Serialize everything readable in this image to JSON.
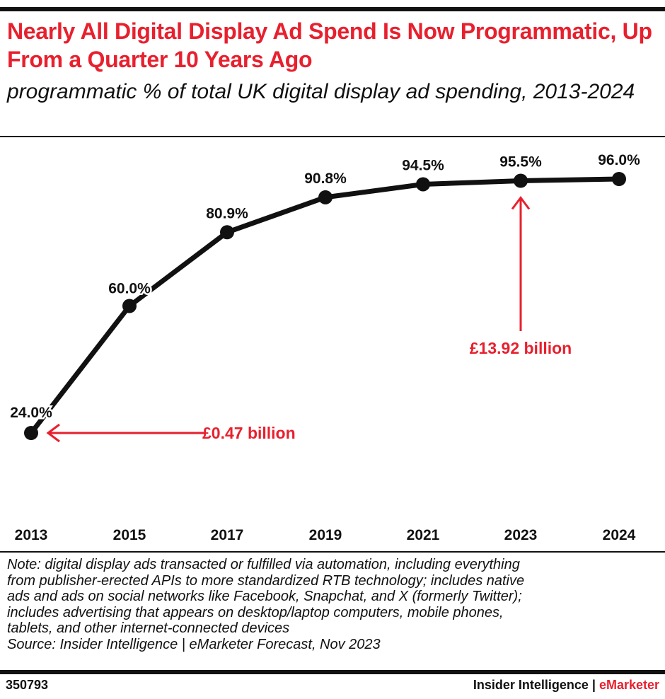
{
  "title": "Nearly All Digital Display Ad Spend Is Now Programmatic, Up From a Quarter 10 Years Ago",
  "subtitle": "programmatic % of total UK digital display ad spending, 2013-2024",
  "chart_data": {
    "type": "line",
    "x": [
      "2013",
      "2015",
      "2017",
      "2019",
      "2021",
      "2023",
      "2024"
    ],
    "values": [
      24.0,
      60.0,
      80.9,
      90.8,
      94.5,
      95.5,
      96.0
    ],
    "data_labels": [
      "24.0%",
      "60.0%",
      "80.9%",
      "90.8%",
      "94.5%",
      "95.5%",
      "96.0%"
    ],
    "ylim": [
      0,
      100
    ],
    "grid": false,
    "line_color": "#111111",
    "annotations": [
      {
        "text": "£0.47 billion",
        "x": "2013",
        "color": "#e8202e"
      },
      {
        "text": "£13.92 billion",
        "x": "2023",
        "color": "#e8202e"
      }
    ]
  },
  "note": [
    "Note: digital display ads transacted or fulfilled via automation, including everything",
    "from publisher-erected APIs to more standardized RTB technology; includes native",
    "ads and ads on social networks like Facebook, Snapchat, and X (formerly Twitter);",
    "includes advertising that appears on desktop/laptop computers, mobile phones,",
    "tablets, and other internet-connected devices"
  ],
  "source": "Source: Insider Intelligence | eMarketer Forecast, Nov 2023",
  "footer": {
    "chart_id": "350793",
    "brand_left": "Insider Intelligence | ",
    "brand_right": "eMarketer"
  },
  "colors": {
    "accent": "#e8202e",
    "text": "#111111"
  }
}
